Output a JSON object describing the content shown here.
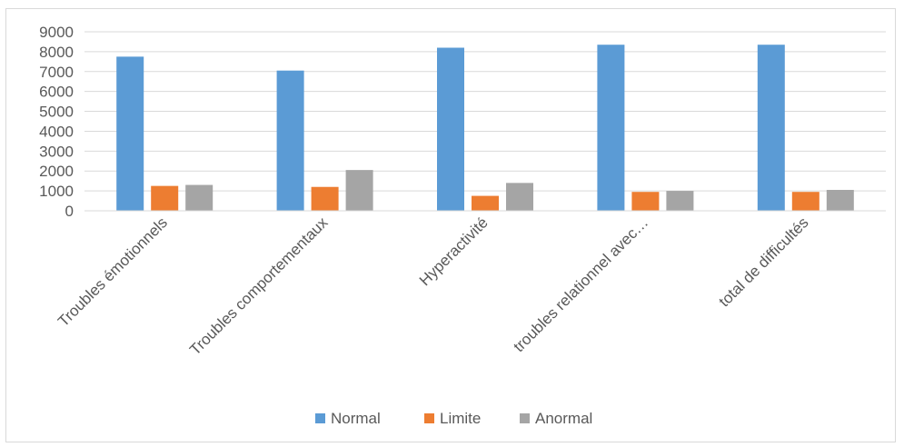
{
  "chart_data": {
    "type": "bar",
    "categories": [
      "Troubles émotionnels",
      "Troubles comportementaux",
      "Hyperactivité",
      "troubles relationnel avec…",
      "total de difficultés"
    ],
    "series": [
      {
        "name": "Normal",
        "color": "#5b9bd5",
        "values": [
          7750,
          7050,
          8200,
          8350,
          8350
        ]
      },
      {
        "name": "Limite",
        "color": "#ed7d31",
        "values": [
          1250,
          1200,
          750,
          950,
          950
        ]
      },
      {
        "name": "Anormal",
        "color": "#a5a5a5",
        "values": [
          1300,
          2050,
          1400,
          1000,
          1050
        ]
      }
    ],
    "ylim": [
      0,
      9000
    ],
    "yticks": [
      "0",
      "1000",
      "2000",
      "3000",
      "4000",
      "5000",
      "6000",
      "7000",
      "8000",
      "9000"
    ],
    "grid": true,
    "legend_position": "bottom",
    "title": "",
    "xlabel": "",
    "ylabel": ""
  }
}
